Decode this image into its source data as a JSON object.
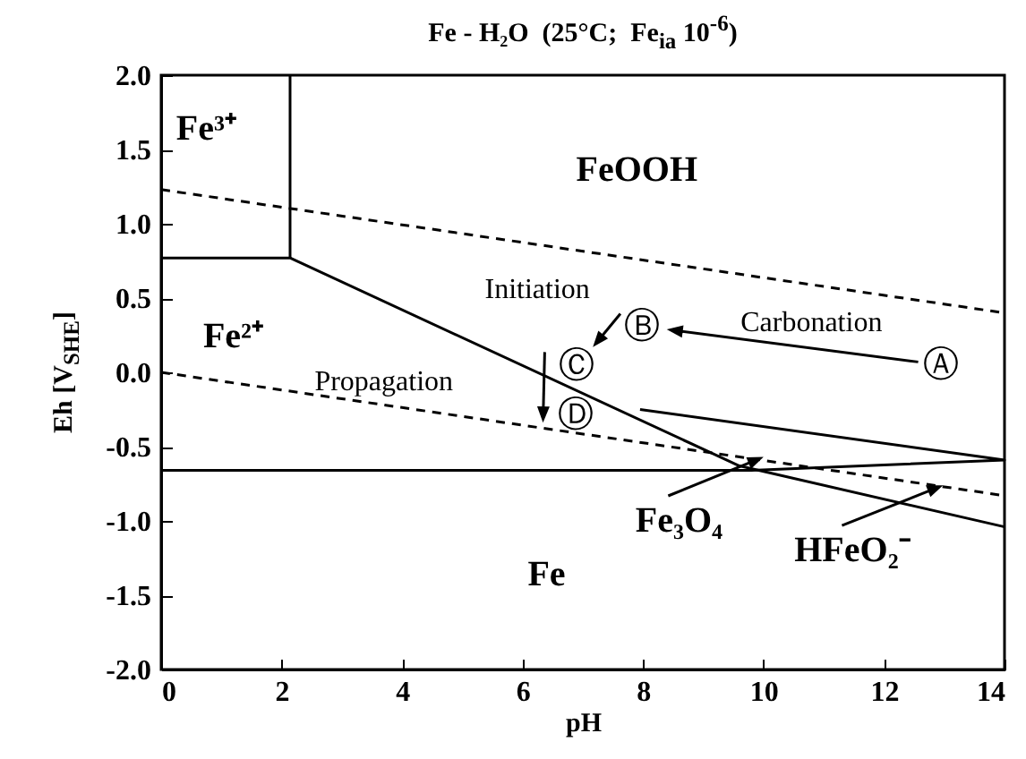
{
  "chart_data": {
    "type": "line",
    "title": "Fe - H₂O  (25°C;  Fe$_{ia}$ 10$^{-6}$)",
    "xlabel": "pH",
    "ylabel": "Eh [V$_{SHE}$]",
    "xlim": [
      0,
      14
    ],
    "ylim": [
      -2,
      2
    ],
    "xticks": [
      0,
      2,
      4,
      6,
      8,
      10,
      12,
      14
    ],
    "yticks": [
      {
        "value": -2,
        "label": "-2.0"
      },
      {
        "value": -1.5,
        "label": "-1.5"
      },
      {
        "value": -1,
        "label": "-1.0"
      },
      {
        "value": -0.5,
        "label": "-0.5"
      },
      {
        "value": 0,
        "label": "0.0"
      },
      {
        "value": 0.5,
        "label": "0.5"
      },
      {
        "value": 1,
        "label": "1.0"
      },
      {
        "value": 1.5,
        "label": "1.5"
      },
      {
        "value": 2,
        "label": "2.0"
      }
    ],
    "grid": false,
    "legend": false,
    "marker": "none",
    "series": [
      {
        "color": "#000000",
        "line_style": "solid",
        "x": [
          0,
          2.14,
          9.6,
          14
        ],
        "values": [
          0.77,
          0.77,
          -0.63,
          -1.04
        ]
      },
      {
        "color": "#000000",
        "line_style": "solid",
        "x": [
          2.14,
          2.14
        ],
        "values": [
          0.77,
          2
        ]
      },
      {
        "color": "#000000",
        "line_style": "solid",
        "x": [
          0,
          9.8,
          14,
          7.95
        ],
        "values": [
          -0.66,
          -0.66,
          -0.59,
          -0.25
        ]
      },
      {
        "color": "#000000",
        "line_style": "dashed",
        "x": [
          0,
          14
        ],
        "values": [
          1.23,
          0.4
        ]
      },
      {
        "color": "#000000",
        "line_style": "dashed",
        "x": [
          0,
          14
        ],
        "values": [
          0,
          -0.83
        ]
      }
    ],
    "annotations": [
      "Fe³⁺",
      "FeOOH",
      "Fe²⁺",
      "Fe",
      {
        "text": "Fe₃O₄",
        "x": 10,
        "y": -0.57
      },
      {
        "text": "HFeO₂⁻",
        "x": 12.98,
        "y": -0.76
      },
      "Initiation",
      "Carbonation",
      "Propagation",
      "Ⓐ",
      "Ⓑ",
      "Ⓒ",
      "Ⓓ"
    ]
  }
}
